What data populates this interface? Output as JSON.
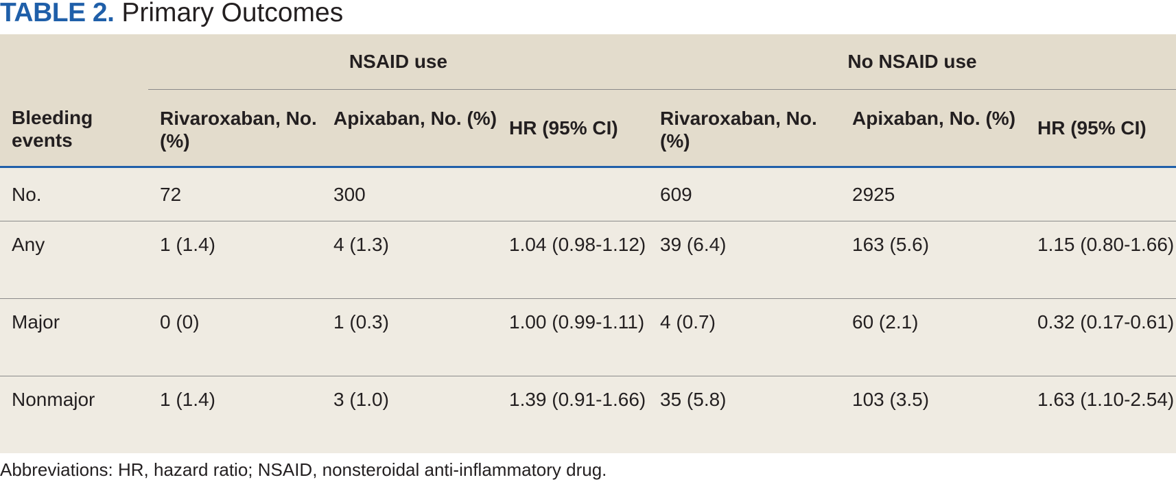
{
  "title": {
    "label": "TABLE 2.",
    "text": "Primary Outcomes"
  },
  "table": {
    "row_header": "Bleeding events",
    "groups": [
      "NSAID use",
      "No NSAID use"
    ],
    "columns": [
      "Rivaroxaban, No. (%)",
      "Apixaban, No. (%)",
      "HR (95% CI)",
      "Rivaroxaban, No. (%)",
      "Apixaban, No. (%)",
      "HR (95% CI)"
    ],
    "rows": [
      {
        "label": "No.",
        "cells": [
          "72",
          "300",
          "",
          "609",
          "2925",
          ""
        ]
      },
      {
        "label": "Any",
        "cells": [
          "1 (1.4)",
          "4 (1.3)",
          "1.04 (0.98-1.12)",
          "39 (6.4)",
          "163 (5.6)",
          "1.15 (0.80-1.66)"
        ]
      },
      {
        "label": "Major",
        "cells": [
          "0 (0)",
          "1 (0.3)",
          "1.00 (0.99-1.11)",
          "4 (0.7)",
          "60 (2.1)",
          "0.32 (0.17-0.61)"
        ]
      },
      {
        "label": "Nonmajor",
        "cells": [
          "1 (1.4)",
          "3 (1.0)",
          "1.39 (0.91-1.66)",
          "35 (5.8)",
          "103 (3.5)",
          "1.63 (1.10-2.54)"
        ]
      }
    ]
  },
  "footnote": "Abbreviations: HR, hazard ratio; NSAID, nonsteroidal anti-inflammatory drug.",
  "colors": {
    "accent": "#1f5fa9",
    "header_bg": "#e3dccc",
    "body_bg": "#efebe2",
    "text": "#231f20"
  }
}
